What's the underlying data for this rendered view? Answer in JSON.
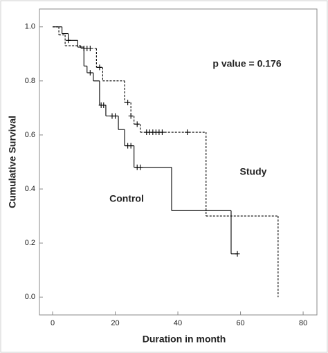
{
  "chart_data": {
    "type": "survival",
    "x_label": "Duration in month",
    "y_label": "Cumulative Survival",
    "annotations": [
      "p value = 0.176",
      "Study",
      "Control"
    ],
    "xlim": [
      -4.2,
      84.4
    ],
    "ylim": [
      -0.066,
      1.066
    ],
    "xticks": [
      0,
      20,
      40,
      60,
      80
    ],
    "yticks": [
      {
        "value": 0,
        "label": "0.0"
      },
      0.2,
      0.4,
      0.6,
      0.8,
      {
        "value": 1,
        "label": "1.0"
      }
    ],
    "series": [
      {
        "name": "Control",
        "color": "#000000",
        "dash": false,
        "x": [
          0,
          3,
          5,
          8,
          10,
          11,
          13,
          15,
          17,
          21,
          23,
          26,
          38,
          57,
          59
        ],
        "values": [
          1.0,
          0.975,
          0.95,
          0.925,
          0.855,
          0.83,
          0.8,
          0.71,
          0.67,
          0.62,
          0.56,
          0.48,
          0.32,
          0.16,
          0.16
        ],
        "censored": {
          "x": [
            5,
            12,
            15.5,
            16.3,
            19,
            20,
            24,
            25,
            27,
            28,
            59
          ],
          "values": [
            0.95,
            0.83,
            0.71,
            0.71,
            0.67,
            0.67,
            0.56,
            0.56,
            0.48,
            0.48,
            0.16
          ]
        }
      },
      {
        "name": "Study",
        "color": "#000000",
        "dash": true,
        "x": [
          0,
          2,
          4,
          9,
          14,
          16,
          23,
          25,
          26,
          28,
          49,
          72
        ],
        "values": [
          1.0,
          0.97,
          0.93,
          0.92,
          0.85,
          0.8,
          0.72,
          0.67,
          0.64,
          0.61,
          0.3,
          0.0
        ],
        "censored": {
          "x": [
            10,
            11,
            12,
            15,
            24,
            25,
            27,
            30,
            31,
            32,
            33,
            34,
            35,
            43
          ],
          "values": [
            0.92,
            0.92,
            0.92,
            0.85,
            0.72,
            0.67,
            0.64,
            0.61,
            0.61,
            0.61,
            0.61,
            0.61,
            0.61,
            0.61
          ]
        }
      }
    ]
  }
}
